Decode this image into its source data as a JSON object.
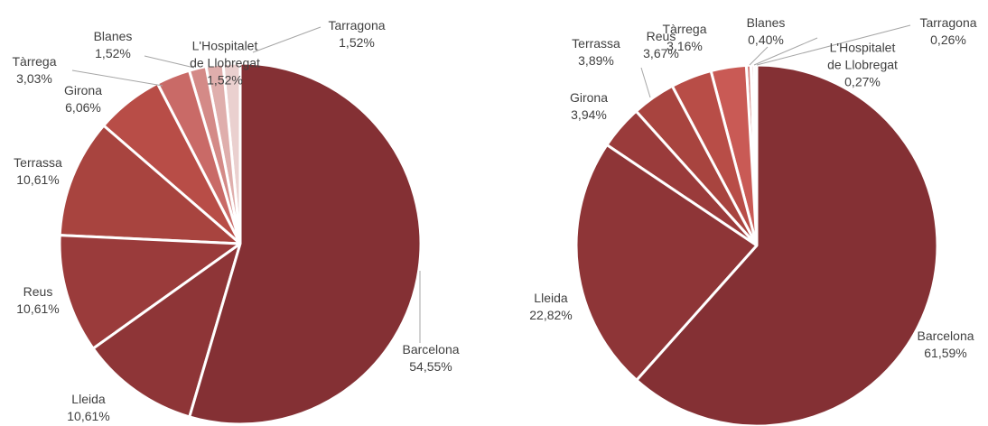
{
  "chart_data": [
    {
      "type": "pie",
      "categories": [
        "Barcelona",
        "Lleida",
        "Reus",
        "Terrassa",
        "Girona",
        "Tàrrega",
        "Blanes",
        "L'Hospitalet de Llobregat",
        "Tarragona"
      ],
      "values": [
        54.55,
        10.61,
        10.61,
        10.61,
        6.06,
        3.03,
        1.52,
        1.52,
        1.52
      ],
      "value_labels": [
        "54,55%",
        "10,61%",
        "10,61%",
        "10,61%",
        "6,06%",
        "3,03%",
        "1,52%",
        "1,52%",
        "1,52%"
      ],
      "colors": [
        "#843034",
        "#8e3537",
        "#9a3b3b",
        "#a8443f",
        "#b84d47",
        "#c96a67",
        "#d48a87",
        "#dfaeac",
        "#ead0cf"
      ]
    },
    {
      "type": "pie",
      "categories": [
        "Barcelona",
        "Lleida",
        "Girona",
        "Terrassa",
        "Reus",
        "Tàrrega",
        "Blanes",
        "L'Hospitalet de Llobregat",
        "Tarragona"
      ],
      "values": [
        61.59,
        22.82,
        3.94,
        3.89,
        3.67,
        3.16,
        0.4,
        0.27,
        0.26
      ],
      "value_labels": [
        "61,59%",
        "22,82%",
        "3,94%",
        "3,89%",
        "3,67%",
        "3,16%",
        "0,40%",
        "0,27%",
        "0,26%"
      ],
      "colors": [
        "#843034",
        "#8e3537",
        "#9a3b3b",
        "#a8443f",
        "#b84d47",
        "#c95a55",
        "#d48582",
        "#e2b5b4",
        "#eed7d6"
      ]
    }
  ]
}
